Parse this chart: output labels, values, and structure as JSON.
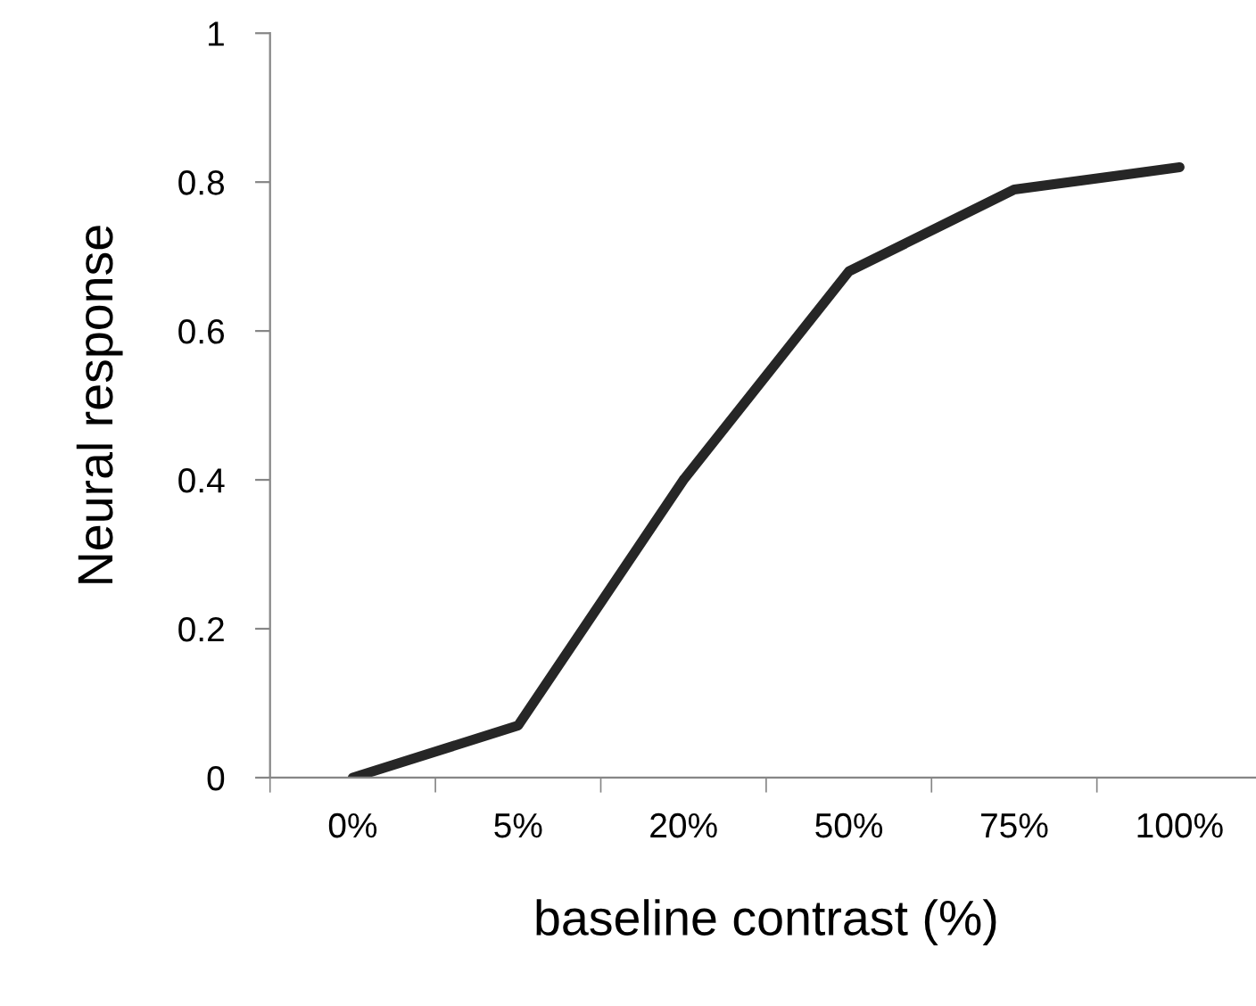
{
  "chart_data": {
    "type": "line",
    "xlabel": "baseline contrast (%)",
    "ylabel": "Neural response",
    "categories": [
      "0%",
      "5%",
      "20%",
      "50%",
      "75%",
      "100%"
    ],
    "series": [
      {
        "color": "#262626",
        "values": [
          0,
          0.07,
          0.4,
          0.68,
          0.79,
          0.82
        ]
      }
    ],
    "ylim": [
      0,
      1
    ],
    "yticks": [
      0,
      0.2,
      0.4,
      0.6,
      0.8,
      1
    ],
    "grid": false,
    "legend": false,
    "marker": "none",
    "line_style": "solid"
  }
}
